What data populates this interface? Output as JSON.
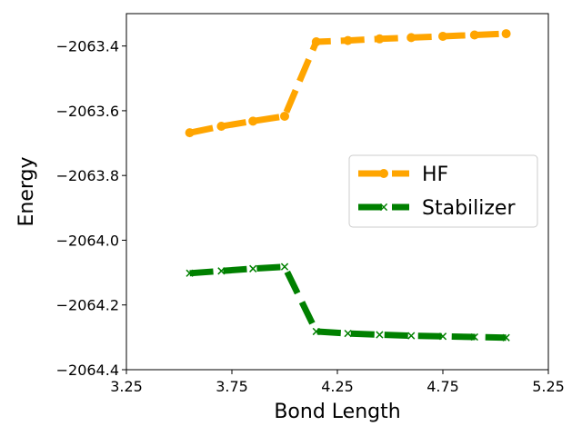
{
  "chart_data": {
    "type": "line",
    "title": "",
    "xlabel": "Bond Length",
    "ylabel": "Energy",
    "xlim": [
      3.25,
      5.25
    ],
    "ylim": [
      -2064.4,
      -2063.3
    ],
    "xticks": [
      3.25,
      3.75,
      4.25,
      4.75,
      5.25
    ],
    "xtick_labels": [
      "3.25",
      "3.75",
      "4.25",
      "4.75",
      "5.25"
    ],
    "yticks": [
      -2064.4,
      -2064.2,
      -2064.0,
      -2063.8,
      -2063.6,
      -2063.4
    ],
    "ytick_labels": [
      "−2064.4",
      "−2064.2",
      "−2064.0",
      "−2063.8",
      "−2063.6",
      "−2063.4"
    ],
    "grid": false,
    "legend_position": "center-right",
    "series": [
      {
        "name": "HF",
        "color": "#ffa500",
        "marker": "circle",
        "linestyle": "dashed",
        "x": [
          3.55,
          3.7,
          3.85,
          4.0,
          4.15,
          4.3,
          4.45,
          4.6,
          4.75,
          4.9,
          5.05
        ],
        "y": [
          -2063.668,
          -2063.648,
          -2063.632,
          -2063.617,
          -2063.387,
          -2063.383,
          -2063.378,
          -2063.374,
          -2063.37,
          -2063.366,
          -2063.362
        ]
      },
      {
        "name": "Stabilizer",
        "color": "#008000",
        "marker": "x",
        "linestyle": "dashed",
        "x": [
          3.55,
          3.7,
          3.85,
          4.0,
          4.15,
          4.3,
          4.45,
          4.6,
          4.75,
          4.9,
          5.05
        ],
        "y": [
          -2064.102,
          -2064.095,
          -2064.088,
          -2064.082,
          -2064.282,
          -2064.288,
          -2064.292,
          -2064.295,
          -2064.297,
          -2064.299,
          -2064.301
        ]
      }
    ]
  }
}
